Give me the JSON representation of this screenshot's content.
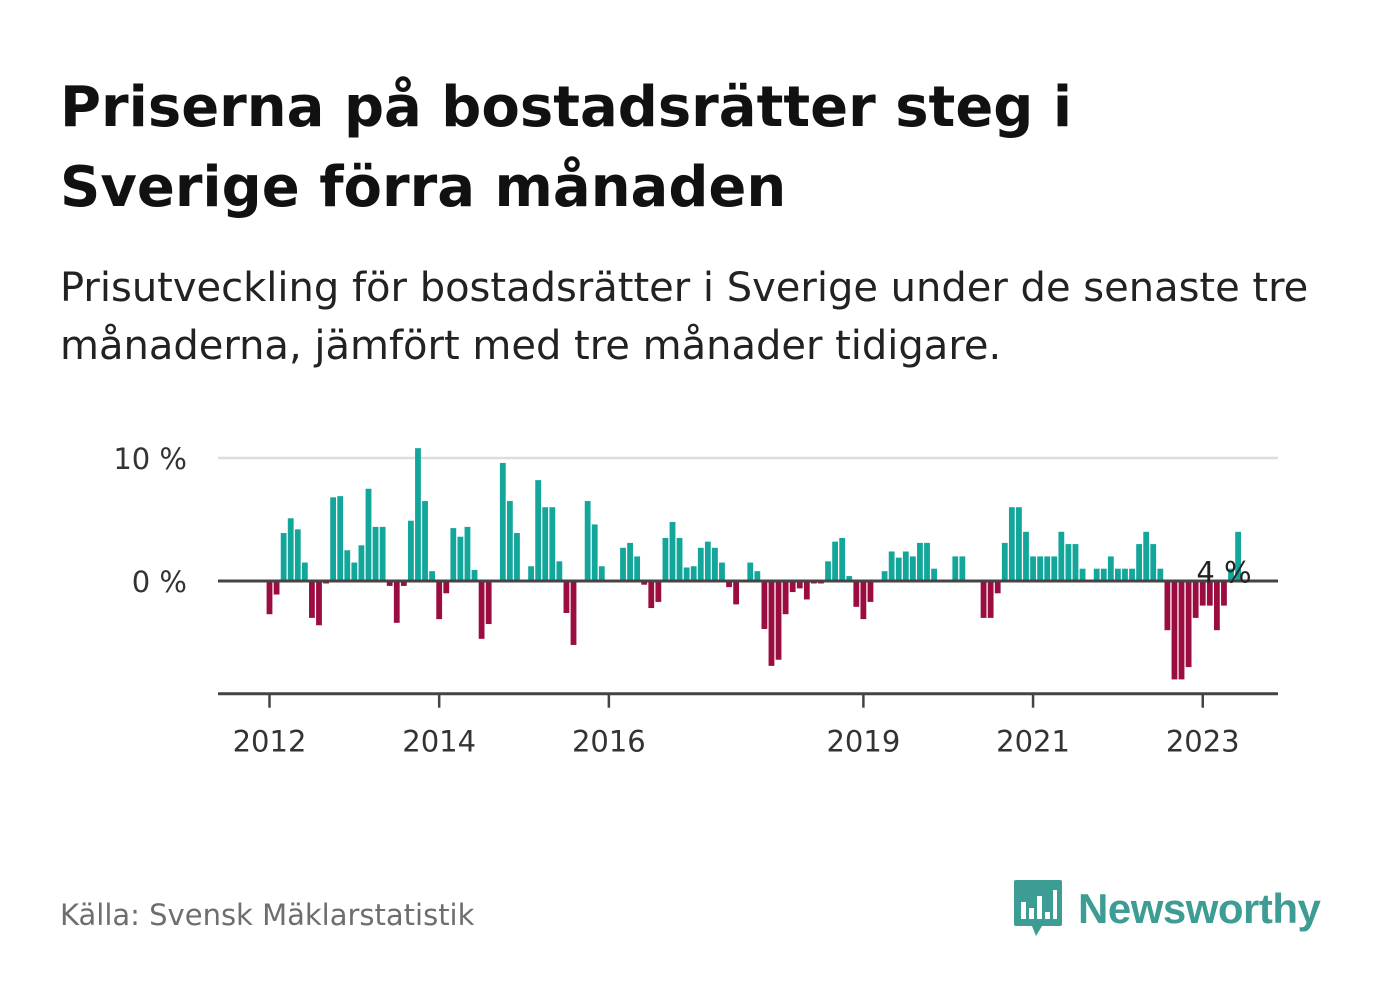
{
  "title": "Priserna på bostadsrätter steg i Sverige förra månaden",
  "subtitle": "Prisutveckling för bostadsrätter i Sverige under de senaste tre månaderna, jämfört med tre månader tidigare.",
  "source": "Källa: Svensk Mäklarstatistik",
  "logo": {
    "text": "Newsworthy",
    "icon": "newsworthy-bars-icon"
  },
  "colors": {
    "positive": "#13a69b",
    "negative": "#9b0c41",
    "axis": "#444444",
    "grid": "#dddddd",
    "brand": "#3d9c93"
  },
  "chart_data": {
    "type": "bar",
    "ylim": [
      -9,
      10.5
    ],
    "y_ticks": [
      {
        "value": 0,
        "label": "0 %"
      },
      {
        "value": 10,
        "label": "10 %"
      }
    ],
    "x_ticks": [
      {
        "index": 0,
        "label": "2012"
      },
      {
        "index": 24,
        "label": "2014"
      },
      {
        "index": 48,
        "label": "2016"
      },
      {
        "index": 84,
        "label": "2019"
      },
      {
        "index": 108,
        "label": "2021"
      },
      {
        "index": 132,
        "label": "2023"
      }
    ],
    "annotation": {
      "index": 135,
      "label": "4 %"
    },
    "grid": "y",
    "values": [
      -2.7,
      -1.1,
      3.9,
      5.1,
      4.2,
      1.5,
      -3.0,
      -3.6,
      -0.2,
      6.8,
      6.9,
      2.5,
      1.5,
      2.9,
      7.5,
      4.4,
      4.4,
      -0.4,
      -3.4,
      -0.4,
      4.9,
      10.8,
      6.5,
      0.8,
      -3.1,
      -1.0,
      4.3,
      3.6,
      4.4,
      0.9,
      -4.7,
      -3.5,
      0.0,
      9.6,
      6.5,
      3.9,
      0.0,
      1.2,
      8.2,
      6.0,
      6.0,
      1.6,
      -2.6,
      -5.2,
      0.0,
      6.5,
      4.6,
      1.2,
      0.0,
      0.0,
      2.7,
      3.1,
      2.0,
      -0.3,
      -2.2,
      -1.7,
      3.5,
      4.8,
      3.5,
      1.1,
      1.2,
      2.7,
      3.2,
      2.7,
      1.5,
      -0.5,
      -1.9,
      0.0,
      1.5,
      0.8,
      -3.9,
      -6.9,
      -6.4,
      -2.7,
      -0.9,
      -0.6,
      -1.5,
      -0.2,
      -0.2,
      1.6,
      3.2,
      3.5,
      0.4,
      -2.1,
      -3.1,
      -1.7,
      0.0,
      0.8,
      2.4,
      1.9,
      2.4,
      2.0,
      3.1,
      3.1,
      1.0,
      0.0,
      0.0,
      2.0,
      2.0,
      0.0,
      0.0,
      -3.0,
      -3.0,
      -1.0,
      3.1,
      6.0,
      6.0,
      4.0,
      2.0,
      2.0,
      2.0,
      2.0,
      4.0,
      3.0,
      3.0,
      1.0,
      0.0,
      1.0,
      1.0,
      2.0,
      1.0,
      1.0,
      1.0,
      3.0,
      4.0,
      3.0,
      1.0,
      -4.0,
      -8.0,
      -8.0,
      -7.0,
      -3.0,
      -2.0,
      -2.0,
      -4.0,
      -2.0,
      1.0,
      4.0
    ]
  }
}
